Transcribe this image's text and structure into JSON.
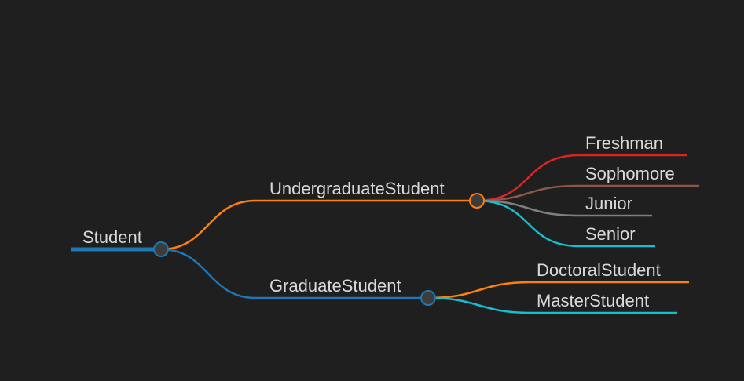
{
  "mindmap": {
    "root": {
      "label": "Student",
      "color": "#1f77b4",
      "children": [
        {
          "label": "UndergraduateStudent",
          "color": "#ff7f0e",
          "circle_fill": "#3c3c3c",
          "children": [
            {
              "label": "Freshman",
              "color": "#d62728"
            },
            {
              "label": "Sophomore",
              "color": "#8c564b"
            },
            {
              "label": "Junior",
              "color": "#7f7f7f"
            },
            {
              "label": "Senior",
              "color": "#17becf"
            }
          ]
        },
        {
          "label": "GraduateStudent",
          "color": "#1f77b4",
          "circle_fill": "#3c3c3c",
          "children": [
            {
              "label": "DoctoralStudent",
              "color": "#ff7f0e"
            },
            {
              "label": "MasterStudent",
              "color": "#17becf"
            }
          ]
        }
      ]
    }
  }
}
